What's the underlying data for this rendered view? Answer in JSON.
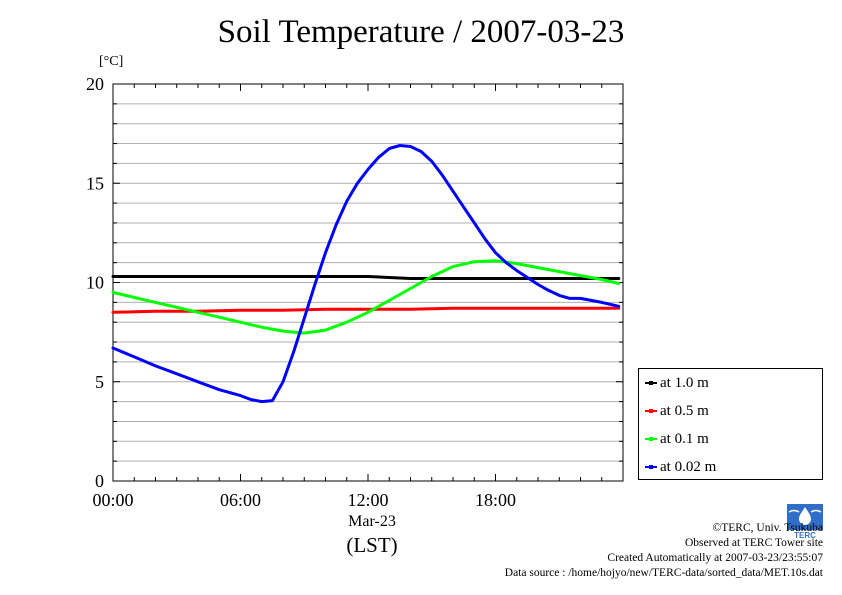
{
  "header": {
    "title": "Soil Temperature / 2007-03-23",
    "unit": "[°C]"
  },
  "axis": {
    "date_label": "Mar-23",
    "time_zone_label": "(LST)"
  },
  "legend": {
    "items": [
      {
        "label": "at 1.0 m",
        "color": "#000000"
      },
      {
        "label": "at 0.5 m",
        "color": "#ff0000"
      },
      {
        "label": "at 0.1 m",
        "color": "#00ff00"
      },
      {
        "label": "at 0.02 m",
        "color": "#0000ff"
      }
    ]
  },
  "footer": {
    "copyright": "©TERC, Univ. Tsukuba",
    "site": "Observed at TERC Tower site",
    "created": "Created Automatically at 2007-03-23/23:55:07",
    "source": "Data source : /home/hojyo/new/TERC-data/sorted_data/MET.10s.dat",
    "logo_text": "TERC"
  },
  "chart_data": {
    "type": "line",
    "title": "Soil Temperature / 2007-03-23",
    "ylabel": "[°C]",
    "xlabel": "(LST)",
    "xlim": [
      0,
      24
    ],
    "ylim": [
      0,
      20
    ],
    "x_tick_labels": [
      "00:00",
      "06:00",
      "12:00",
      "18:00"
    ],
    "x_tick_values": [
      0,
      6,
      12,
      18
    ],
    "y_tick_labels": [
      "0",
      "5",
      "10",
      "15",
      "20"
    ],
    "y_tick_values": [
      0,
      5,
      10,
      15,
      20
    ],
    "grid": "horizontal",
    "legend_position": "right",
    "series": [
      {
        "name": "at 1.0 m",
        "color": "#000000",
        "x": [
          0,
          2,
          4,
          6,
          8,
          10,
          12,
          14,
          16,
          18,
          20,
          22,
          23.8
        ],
        "y": [
          10.3,
          10.3,
          10.3,
          10.3,
          10.3,
          10.3,
          10.3,
          10.2,
          10.2,
          10.2,
          10.2,
          10.2,
          10.2
        ]
      },
      {
        "name": "at 0.5 m",
        "color": "#ff0000",
        "x": [
          0,
          2,
          4,
          6,
          8,
          10,
          12,
          14,
          16,
          18,
          20,
          22,
          23.8
        ],
        "y": [
          8.5,
          8.55,
          8.55,
          8.6,
          8.6,
          8.65,
          8.65,
          8.65,
          8.7,
          8.7,
          8.7,
          8.7,
          8.7
        ]
      },
      {
        "name": "at 0.1 m",
        "color": "#00ff00",
        "x": [
          0,
          1,
          2,
          3,
          4,
          5,
          6,
          7,
          8,
          9,
          10,
          11,
          12,
          13,
          14,
          15,
          16,
          17,
          18,
          19,
          20,
          21,
          22,
          23,
          23.8
        ],
        "y": [
          9.5,
          9.25,
          9.0,
          8.75,
          8.5,
          8.25,
          8.0,
          7.75,
          7.55,
          7.45,
          7.6,
          8.0,
          8.5,
          9.1,
          9.7,
          10.3,
          10.8,
          11.05,
          11.1,
          10.95,
          10.75,
          10.55,
          10.35,
          10.15,
          9.95
        ]
      },
      {
        "name": "at 0.02 m",
        "color": "#0000ff",
        "x": [
          0,
          1,
          2,
          3,
          4,
          5,
          6,
          6.5,
          7,
          7.5,
          8,
          8.5,
          9,
          9.5,
          10,
          10.5,
          11,
          11.5,
          12,
          12.5,
          13,
          13.5,
          14,
          14.5,
          15,
          15.5,
          16,
          16.5,
          17,
          17.5,
          18,
          18.5,
          19,
          19.5,
          20,
          20.5,
          21,
          21.5,
          22,
          22.5,
          23,
          23.8
        ],
        "y": [
          6.7,
          6.25,
          5.8,
          5.4,
          5.0,
          4.6,
          4.3,
          4.1,
          4.0,
          4.05,
          5.0,
          6.5,
          8.2,
          9.9,
          11.5,
          12.9,
          14.1,
          15.0,
          15.7,
          16.3,
          16.75,
          16.9,
          16.85,
          16.6,
          16.1,
          15.4,
          14.6,
          13.8,
          13.0,
          12.2,
          11.5,
          11.0,
          10.6,
          10.25,
          9.9,
          9.6,
          9.35,
          9.2,
          9.2,
          9.1,
          9.0,
          8.8
        ]
      }
    ]
  }
}
